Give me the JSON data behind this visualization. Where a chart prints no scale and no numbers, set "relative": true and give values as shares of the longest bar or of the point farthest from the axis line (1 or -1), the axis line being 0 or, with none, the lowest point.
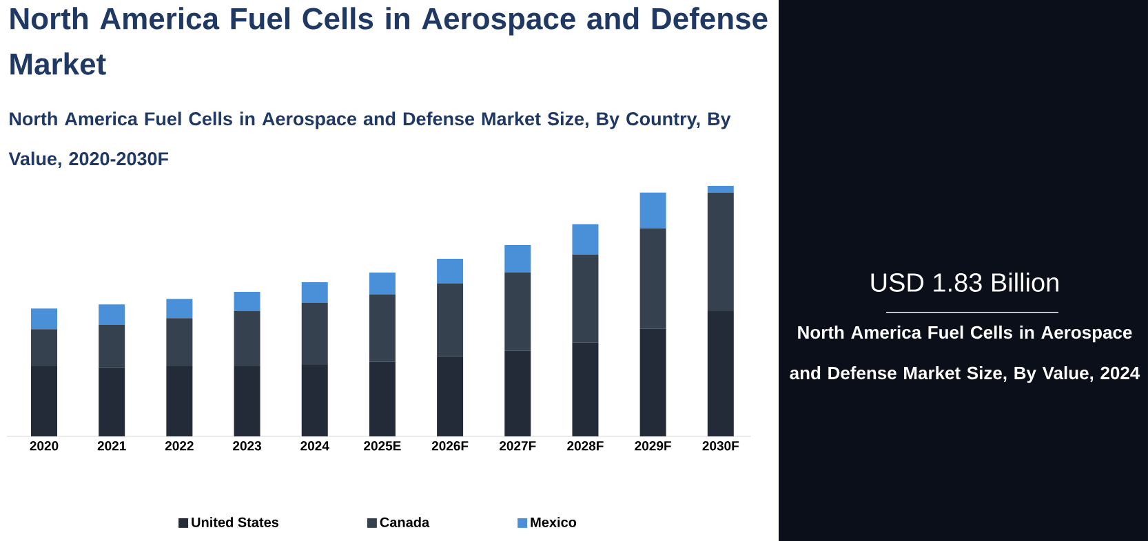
{
  "chart_data": {
    "type": "bar",
    "title": "North America Fuel Cells in Aerospace and Defense Market",
    "subtitle": "North America Fuel Cells in Aerospace and Defense Market Size, By Country, By Value, 2020-2030F",
    "categories": [
      "2020",
      "2021",
      "2022",
      "2023",
      "2024",
      "2025E",
      "2026F",
      "2027F",
      "2028F",
      "2029F",
      "2030F"
    ],
    "relative": true,
    "stacked": true,
    "legend": "bottom",
    "series": [
      {
        "name": "United States",
        "color": "#232b38",
        "values": [
          0.28,
          0.276,
          0.28,
          0.28,
          0.286,
          0.297,
          0.319,
          0.341,
          0.374,
          0.429,
          0.5
        ]
      },
      {
        "name": "Canada",
        "color": "#364150",
        "values": [
          0.148,
          0.169,
          0.192,
          0.22,
          0.247,
          0.269,
          0.291,
          0.313,
          0.352,
          0.401,
          0.473
        ]
      },
      {
        "name": "Mexico",
        "color": "#4a90d9",
        "values": [
          0.082,
          0.082,
          0.077,
          0.077,
          0.082,
          0.088,
          0.099,
          0.11,
          0.121,
          0.143,
          0.027
        ]
      }
    ],
    "annotations": [
      "USD 1.83 Billion",
      "North America Fuel Cells in Aerospace and Defense Market Size, By Value, 2024"
    ]
  }
}
